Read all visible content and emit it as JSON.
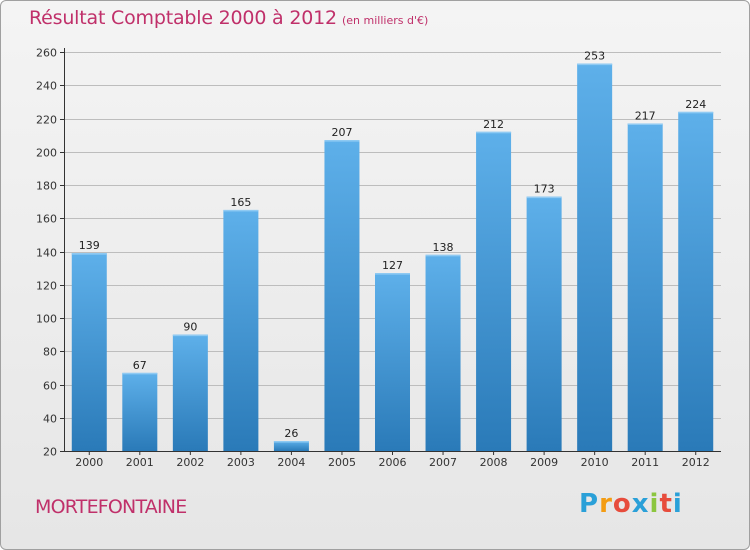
{
  "header": {
    "title": "Résultat Comptable 2000 à 2012",
    "unit": "(en milliers d'€)"
  },
  "footer": {
    "commune": "MORTEFONTAINE",
    "logo_letters": [
      "P",
      "r",
      "o",
      "x",
      "i",
      "t",
      "i"
    ],
    "logo_colors": [
      "#2aa0d8",
      "#f39c12",
      "#e74c3c",
      "#2aa0d8",
      "#8cc63f",
      "#e74c3c",
      "#2aa0d8"
    ]
  },
  "chart_data": {
    "type": "bar",
    "title": "Résultat Comptable 2000 à 2012",
    "xlabel": "",
    "ylabel": "",
    "categories": [
      "2000",
      "2001",
      "2002",
      "2003",
      "2004",
      "2005",
      "2006",
      "2007",
      "2008",
      "2009",
      "2010",
      "2011",
      "2012"
    ],
    "values": [
      139,
      67,
      90,
      165,
      26,
      207,
      127,
      138,
      212,
      173,
      253,
      217,
      224
    ],
    "ylim": [
      20,
      260
    ],
    "yticks": [
      20,
      40,
      60,
      80,
      100,
      120,
      140,
      160,
      180,
      200,
      220,
      240,
      260
    ],
    "grid": true,
    "colors": {
      "bar_light": "#5eb0ea",
      "bar_dark": "#2a7ab8",
      "grid": "#bdbdbd",
      "axis": "#333333"
    }
  }
}
